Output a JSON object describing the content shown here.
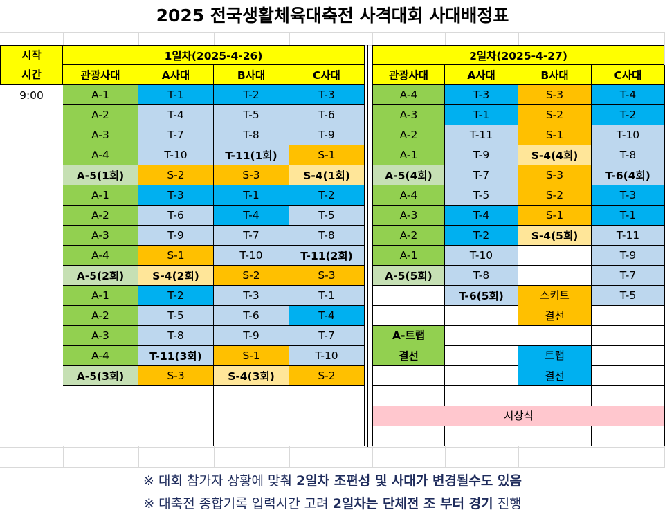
{
  "title": "2025 전국생활체육대축전 사격대회 사대배정표",
  "colors": {
    "yellow": "#ffff00",
    "green": "#92d050",
    "light_green": "#c6e0b4",
    "blue": "#00b0f0",
    "light_blue": "#bdd7ee",
    "orange": "#ffc000",
    "light_orange": "#ffe699",
    "pink": "#ffc7ce",
    "white": "#ffffff"
  },
  "header": {
    "start_time_label": [
      "시작",
      "시간"
    ],
    "day1_label": "1일차(2025-4-26)",
    "day2_label": "2일차(2025-4-27)",
    "lanes": [
      "관광사대",
      "A사대",
      "B사대",
      "C사대"
    ]
  },
  "start_time": "9:00",
  "day1": {
    "rows": [
      [
        {
          "t": "A-1",
          "c": "green"
        },
        {
          "t": "T-1",
          "c": "blue"
        },
        {
          "t": "T-2",
          "c": "blue"
        },
        {
          "t": "T-3",
          "c": "blue"
        }
      ],
      [
        {
          "t": "A-2",
          "c": "green"
        },
        {
          "t": "T-4",
          "c": "light_blue"
        },
        {
          "t": "T-5",
          "c": "light_blue"
        },
        {
          "t": "T-6",
          "c": "light_blue"
        }
      ],
      [
        {
          "t": "A-3",
          "c": "green"
        },
        {
          "t": "T-7",
          "c": "light_blue"
        },
        {
          "t": "T-8",
          "c": "light_blue"
        },
        {
          "t": "T-9",
          "c": "light_blue"
        }
      ],
      [
        {
          "t": "A-4",
          "c": "green"
        },
        {
          "t": "T-10",
          "c": "light_blue"
        },
        {
          "t": "T-11(1회)",
          "c": "light_blue",
          "b": true
        },
        {
          "t": "S-1",
          "c": "orange"
        }
      ],
      [
        {
          "t": "A-5(1회)",
          "c": "light_green",
          "b": true
        },
        {
          "t": "S-2",
          "c": "orange"
        },
        {
          "t": "S-3",
          "c": "orange"
        },
        {
          "t": "S-4(1회)",
          "c": "light_orange",
          "b": true
        }
      ],
      [
        {
          "t": "A-1",
          "c": "green"
        },
        {
          "t": "T-3",
          "c": "blue"
        },
        {
          "t": "T-1",
          "c": "blue"
        },
        {
          "t": "T-2",
          "c": "blue"
        }
      ],
      [
        {
          "t": "A-2",
          "c": "green"
        },
        {
          "t": "T-6",
          "c": "light_blue"
        },
        {
          "t": "T-4",
          "c": "blue"
        },
        {
          "t": "T-5",
          "c": "light_blue"
        }
      ],
      [
        {
          "t": "A-3",
          "c": "green"
        },
        {
          "t": "T-9",
          "c": "light_blue"
        },
        {
          "t": "T-7",
          "c": "light_blue"
        },
        {
          "t": "T-8",
          "c": "light_blue"
        }
      ],
      [
        {
          "t": "A-4",
          "c": "green"
        },
        {
          "t": "S-1",
          "c": "orange"
        },
        {
          "t": "T-10",
          "c": "light_blue"
        },
        {
          "t": "T-11(2회)",
          "c": "light_blue",
          "b": true
        }
      ],
      [
        {
          "t": "A-5(2회)",
          "c": "light_green",
          "b": true
        },
        {
          "t": "S-4(2회)",
          "c": "light_orange",
          "b": true
        },
        {
          "t": "S-2",
          "c": "orange"
        },
        {
          "t": "S-3",
          "c": "orange"
        }
      ],
      [
        {
          "t": "A-1",
          "c": "green"
        },
        {
          "t": "T-2",
          "c": "blue"
        },
        {
          "t": "T-3",
          "c": "light_blue"
        },
        {
          "t": "T-1",
          "c": "light_blue"
        }
      ],
      [
        {
          "t": "A-2",
          "c": "green"
        },
        {
          "t": "T-5",
          "c": "light_blue"
        },
        {
          "t": "T-6",
          "c": "light_blue"
        },
        {
          "t": "T-4",
          "c": "blue"
        }
      ],
      [
        {
          "t": "A-3",
          "c": "green"
        },
        {
          "t": "T-8",
          "c": "light_blue"
        },
        {
          "t": "T-9",
          "c": "light_blue"
        },
        {
          "t": "T-7",
          "c": "light_blue"
        }
      ],
      [
        {
          "t": "A-4",
          "c": "green"
        },
        {
          "t": "T-11(3회)",
          "c": "light_blue",
          "b": true
        },
        {
          "t": "S-1",
          "c": "orange"
        },
        {
          "t": "T-10",
          "c": "light_blue"
        }
      ],
      [
        {
          "t": "A-5(3회)",
          "c": "light_green",
          "b": true
        },
        {
          "t": "S-3",
          "c": "orange"
        },
        {
          "t": "S-4(3회)",
          "c": "light_orange",
          "b": true
        },
        {
          "t": "S-2",
          "c": "orange"
        }
      ],
      [
        {
          "t": "",
          "c": "white"
        },
        {
          "t": "",
          "c": "white"
        },
        {
          "t": "",
          "c": "white"
        },
        {
          "t": "",
          "c": "white"
        }
      ],
      [
        {
          "t": "",
          "c": "white"
        },
        {
          "t": "",
          "c": "white"
        },
        {
          "t": "",
          "c": "white"
        },
        {
          "t": "",
          "c": "white"
        }
      ],
      [
        {
          "t": "",
          "c": "white"
        },
        {
          "t": "",
          "c": "white"
        },
        {
          "t": "",
          "c": "white"
        },
        {
          "t": "",
          "c": "white"
        }
      ]
    ]
  },
  "day2": {
    "rows": [
      [
        {
          "t": "A-4",
          "c": "green"
        },
        {
          "t": "T-3",
          "c": "blue"
        },
        {
          "t": "S-3",
          "c": "orange"
        },
        {
          "t": "T-4",
          "c": "blue"
        }
      ],
      [
        {
          "t": "A-3",
          "c": "green"
        },
        {
          "t": "T-1",
          "c": "blue"
        },
        {
          "t": "S-2",
          "c": "orange"
        },
        {
          "t": "T-2",
          "c": "blue"
        }
      ],
      [
        {
          "t": "A-2",
          "c": "green"
        },
        {
          "t": "T-11",
          "c": "light_blue"
        },
        {
          "t": "S-1",
          "c": "orange"
        },
        {
          "t": "T-10",
          "c": "light_blue"
        }
      ],
      [
        {
          "t": "A-1",
          "c": "green"
        },
        {
          "t": "T-9",
          "c": "light_blue"
        },
        {
          "t": "S-4(4회)",
          "c": "light_orange",
          "b": true
        },
        {
          "t": "T-8",
          "c": "light_blue"
        }
      ],
      [
        {
          "t": "A-5(4회)",
          "c": "light_green",
          "b": true
        },
        {
          "t": "T-7",
          "c": "light_blue"
        },
        {
          "t": "S-3",
          "c": "orange"
        },
        {
          "t": "T-6(4회)",
          "c": "light_blue",
          "b": true
        }
      ],
      [
        {
          "t": "A-4",
          "c": "green"
        },
        {
          "t": "T-5",
          "c": "light_blue"
        },
        {
          "t": "S-2",
          "c": "orange"
        },
        {
          "t": "T-3",
          "c": "blue"
        }
      ],
      [
        {
          "t": "A-3",
          "c": "green"
        },
        {
          "t": "T-4",
          "c": "blue"
        },
        {
          "t": "S-1",
          "c": "orange"
        },
        {
          "t": "T-1",
          "c": "blue"
        }
      ],
      [
        {
          "t": "A-2",
          "c": "green"
        },
        {
          "t": "T-2",
          "c": "blue"
        },
        {
          "t": "S-4(5회)",
          "c": "light_orange",
          "b": true
        },
        {
          "t": "T-11",
          "c": "light_blue"
        }
      ],
      [
        {
          "t": "A-1",
          "c": "green"
        },
        {
          "t": "T-10",
          "c": "light_blue"
        },
        {
          "t": "",
          "c": "white"
        },
        {
          "t": "T-9",
          "c": "light_blue"
        }
      ],
      [
        {
          "t": "A-5(5회)",
          "c": "light_green",
          "b": true
        },
        {
          "t": "T-8",
          "c": "light_blue"
        },
        {
          "t": "",
          "c": "white"
        },
        {
          "t": "T-7",
          "c": "light_blue"
        }
      ],
      [
        {
          "t": "",
          "c": "white"
        },
        {
          "t": "T-6(5회)",
          "c": "light_blue",
          "b": true
        },
        {
          "t": "",
          "c": "white"
        },
        {
          "t": "T-5",
          "c": "light_blue"
        }
      ],
      [
        {
          "t": "",
          "c": "white"
        },
        {
          "t": "",
          "c": "white"
        },
        {
          "t": "",
          "c": "white"
        },
        {
          "t": "",
          "c": "white"
        }
      ],
      [
        {
          "t": "",
          "c": "white"
        },
        {
          "t": "",
          "c": "white"
        },
        {
          "t": "",
          "c": "white"
        },
        {
          "t": "",
          "c": "white"
        }
      ],
      [
        {
          "t": "",
          "c": "white"
        },
        {
          "t": "",
          "c": "white"
        },
        {
          "t": "",
          "c": "white"
        },
        {
          "t": "",
          "c": "white"
        }
      ],
      [
        {
          "t": "",
          "c": "white"
        },
        {
          "t": "",
          "c": "white"
        },
        {
          "t": "",
          "c": "white"
        },
        {
          "t": "",
          "c": "white"
        }
      ],
      [
        {
          "t": "",
          "c": "white"
        },
        {
          "t": "",
          "c": "white"
        },
        {
          "t": "",
          "c": "white"
        },
        {
          "t": "",
          "c": "white"
        }
      ],
      [
        {
          "t": "",
          "c": "white"
        },
        {
          "t": "",
          "c": "white"
        },
        {
          "t": "",
          "c": "white"
        },
        {
          "t": "",
          "c": "white"
        }
      ],
      [
        {
          "t": "",
          "c": "white"
        },
        {
          "t": "",
          "c": "white"
        },
        {
          "t": "",
          "c": "white"
        },
        {
          "t": "",
          "c": "white"
        }
      ]
    ],
    "merged": [
      {
        "text": [
          "스키트",
          "결선"
        ],
        "c": "orange",
        "col": 2,
        "row": 10,
        "rowspan": 2,
        "name": "skeet-final-cell"
      },
      {
        "text": [
          "A-트랩",
          "결선"
        ],
        "c": "green",
        "col": 0,
        "row": 12,
        "rowspan": 2,
        "name": "a-trap-final-cell",
        "b": true
      },
      {
        "text": [
          "트랩",
          "결선"
        ],
        "c": "blue",
        "col": 2,
        "row": 13,
        "rowspan": 2,
        "name": "trap-final-cell"
      },
      {
        "text": [
          "시상식"
        ],
        "c": "pink",
        "col": 0,
        "row": 16,
        "rowspan": 1,
        "colspan": 4,
        "name": "award-ceremony-cell"
      }
    ]
  },
  "notes": [
    {
      "prefix": "※ 대회 참가자 상황에 맞춰 ",
      "highlight": "2일차 조편성 및 사대가 변경될수도 있음",
      "suffix": ""
    },
    {
      "prefix": "※ 대축전 종합기록 입력시간 고려 ",
      "highlight": "2일차는 단체전 조 부터 경기",
      "suffix": " 진행"
    }
  ]
}
